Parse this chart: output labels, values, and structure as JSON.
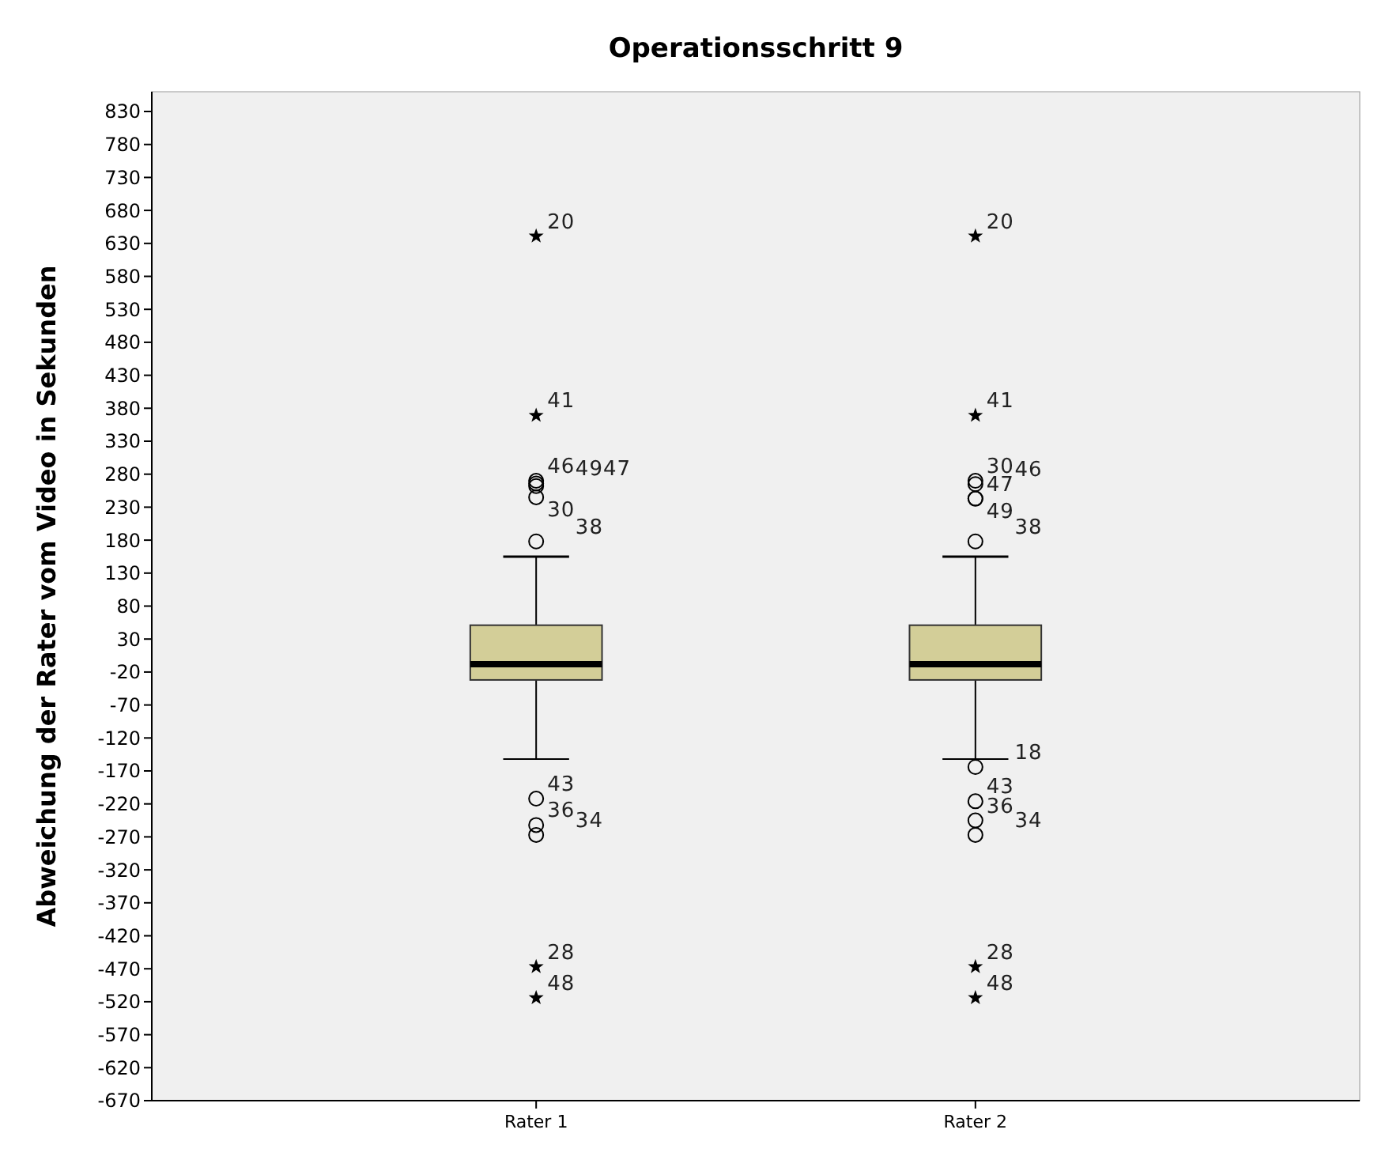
{
  "chart_data": {
    "type": "box",
    "title": "Operationsschritt 9",
    "ylabel": "Abweichung der Rater vom Video in Sekunden",
    "categories": [
      "Rater 1",
      "Rater 2"
    ],
    "color": "#d3ce98",
    "boxes": [
      {
        "low": -152,
        "q1": -32,
        "median": -8,
        "q3": 51,
        "high": 155
      },
      {
        "low": -152,
        "q1": -32,
        "median": -8,
        "q3": 51,
        "high": 155
      }
    ],
    "series": [
      {
        "type": "scatter",
        "marker": "circle",
        "color": "#000000",
        "x": [
          "Rater 1",
          "Rater 1",
          "Rater 1",
          "Rater 1",
          "Rater 1",
          "Rater 1",
          "Rater 1",
          "Rater 1",
          "Rater 2",
          "Rater 2",
          "Rater 2",
          "Rater 2",
          "Rater 2",
          "Rater 2",
          "Rater 2",
          "Rater 2",
          "Rater 2"
        ],
        "values": [
          270,
          266,
          262,
          245,
          178,
          -212,
          -252,
          -267,
          270,
          265,
          243,
          243,
          178,
          -164,
          -216,
          -245,
          -267
        ]
      },
      {
        "type": "scatter",
        "marker": "star",
        "color": "#000000",
        "x": [
          "Rater 1",
          "Rater 1",
          "Rater 1",
          "Rater 1",
          "Rater 2",
          "Rater 2",
          "Rater 2",
          "Rater 2"
        ],
        "values": [
          641,
          369,
          -467,
          -514,
          641,
          369,
          -467,
          -514
        ]
      }
    ],
    "ylim": [
      -670,
      860
    ],
    "yticks": [
      830,
      780,
      730,
      680,
      630,
      580,
      530,
      480,
      430,
      380,
      330,
      280,
      230,
      180,
      130,
      80,
      30,
      -20,
      -70,
      -120,
      -170,
      -220,
      -270,
      -320,
      -370,
      -420,
      -470,
      -520,
      -570,
      -620,
      -670
    ],
    "annotations": [
      {
        "text": "20",
        "x": "Rater 1",
        "y": 641
      },
      {
        "text": "41",
        "x": "Rater 1",
        "y": 369
      },
      {
        "text": "46",
        "x": "Rater 1",
        "y": 270
      },
      {
        "text": "4947",
        "x": "Rater 1",
        "y": 266
      },
      {
        "text": "30",
        "x": "Rater 1",
        "y": 245
      },
      {
        "text": "38",
        "x": "Rater 1",
        "y": 178
      },
      {
        "text": "43",
        "x": "Rater 1",
        "y": -212
      },
      {
        "text": "36",
        "x": "Rater 1",
        "y": -252
      },
      {
        "text": "34",
        "x": "Rater 1",
        "y": -267
      },
      {
        "text": "28",
        "x": "Rater 1",
        "y": -467
      },
      {
        "text": "48",
        "x": "Rater 1",
        "y": -514
      },
      {
        "text": "20",
        "x": "Rater 2",
        "y": 641
      },
      {
        "text": "41",
        "x": "Rater 2",
        "y": 369
      },
      {
        "text": "30",
        "x": "Rater 2",
        "y": 270
      },
      {
        "text": "46",
        "x": "Rater 2",
        "y": 265
      },
      {
        "text": "47",
        "x": "Rater 2",
        "y": 243
      },
      {
        "text": "49",
        "x": "Rater 2",
        "y": 243
      },
      {
        "text": "38",
        "x": "Rater 2",
        "y": 178
      },
      {
        "text": "18",
        "x": "Rater 2",
        "y": -164
      },
      {
        "text": "43",
        "x": "Rater 2",
        "y": -216
      },
      {
        "text": "36",
        "x": "Rater 2",
        "y": -245
      },
      {
        "text": "34",
        "x": "Rater 2",
        "y": -267
      },
      {
        "text": "28",
        "x": "Rater 2",
        "y": -467
      },
      {
        "text": "48",
        "x": "Rater 2",
        "y": -514
      }
    ]
  }
}
